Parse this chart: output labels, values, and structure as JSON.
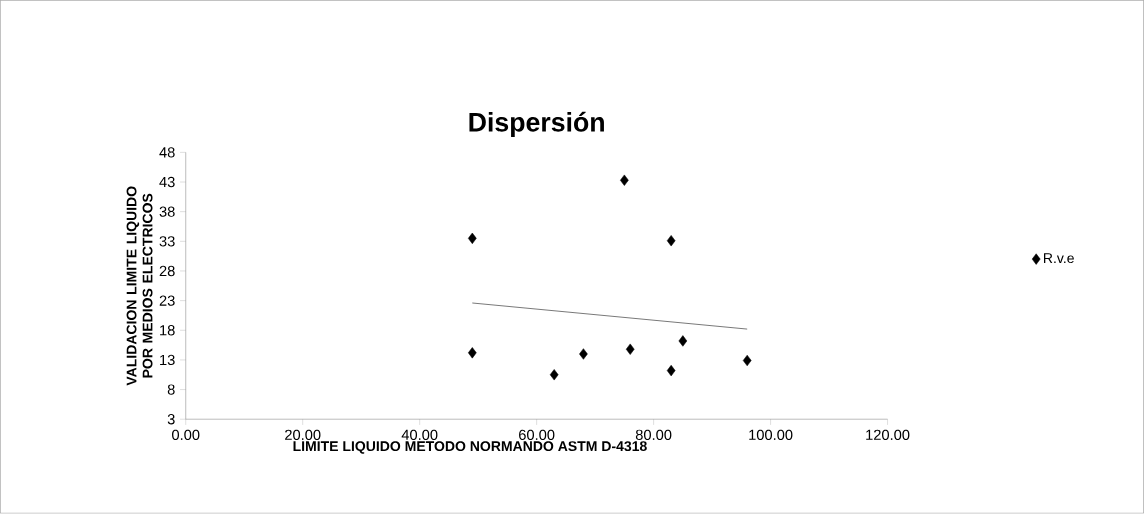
{
  "chart_data": {
    "type": "scatter",
    "title": "Dispersión",
    "xlabel": "LIMITE LIQUIDO METODO  NORMANDO  ASTM D-4318",
    "ylabel": "VALIDACION LIMITE LIQUIDO POR MEDIOS ELECTRICOS",
    "xlim": [
      0,
      120
    ],
    "xticks": [
      {
        "value": 0,
        "label": "0.00"
      },
      {
        "value": 20,
        "label": "20.00"
      },
      {
        "value": 40,
        "label": "40.00"
      },
      {
        "value": 60,
        "label": "60.00"
      },
      {
        "value": 80,
        "label": "80.00"
      },
      {
        "value": 100,
        "label": "100.00"
      },
      {
        "value": 120,
        "label": "120.00"
      }
    ],
    "ylim": [
      3,
      48
    ],
    "yticks": [
      3,
      8,
      13,
      18,
      23,
      28,
      33,
      38,
      43,
      48
    ],
    "grid": false,
    "legend": "right",
    "marker": "diamond",
    "series": [
      {
        "name": "R.v.e",
        "color": "#000000",
        "x": [
          49,
          49,
          63,
          68,
          75,
          76,
          83,
          83,
          85,
          96
        ],
        "values": [
          33.5,
          14.2,
          10.5,
          14,
          43.3,
          14.8,
          33.1,
          11.2,
          16.2,
          12.9
        ]
      },
      {
        "type": "line",
        "marker": "none",
        "color": "#000000",
        "x": [
          49,
          96
        ],
        "values": [
          22.6,
          18.2
        ]
      }
    ]
  }
}
